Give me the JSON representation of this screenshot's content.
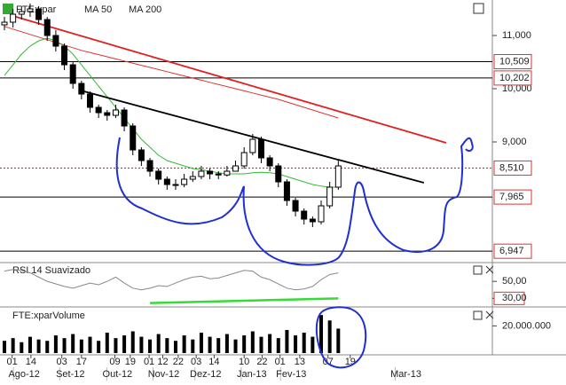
{
  "chart_data": {
    "type": "candlestick",
    "title": "FTE:xpar",
    "open": [
      11200,
      11250,
      11400,
      11450,
      11500,
      11300,
      11000,
      10800,
      10450,
      10100,
      9900,
      9650,
      9550,
      9500,
      9600,
      9300,
      8850,
      8650,
      8450,
      8300,
      8200,
      8200,
      8300,
      8350,
      8450,
      8400,
      8380,
      8450,
      8550,
      8800,
      9050,
      8700,
      8550,
      8250,
      7900,
      7700,
      7550,
      7500,
      7800,
      8150
    ],
    "close": [
      11250,
      11400,
      11450,
      11500,
      11300,
      11000,
      10800,
      10450,
      10100,
      9900,
      9650,
      9550,
      9500,
      9600,
      9300,
      8850,
      8650,
      8450,
      8300,
      8200,
      8200,
      8300,
      8350,
      8450,
      8400,
      8380,
      8450,
      8550,
      8800,
      9050,
      8700,
      8550,
      8250,
      7900,
      7700,
      7550,
      7500,
      7800,
      8150,
      8550
    ],
    "high": [
      11350,
      11500,
      11550,
      11600,
      11550,
      11350,
      11100,
      10850,
      10500,
      10150,
      9950,
      9700,
      9600,
      9700,
      9650,
      9350,
      8900,
      8700,
      8500,
      8350,
      8300,
      8400,
      8450,
      8550,
      8500,
      8450,
      8550,
      8650,
      8900,
      9150,
      9100,
      8750,
      8600,
      8300,
      7950,
      7750,
      7600,
      7900,
      8250,
      8650
    ],
    "low": [
      11100,
      11150,
      11300,
      11350,
      11200,
      10900,
      10700,
      10350,
      10000,
      9800,
      9550,
      9450,
      9400,
      9450,
      9200,
      8750,
      8550,
      8350,
      8200,
      8100,
      8100,
      8150,
      8250,
      8300,
      8300,
      8300,
      8350,
      8450,
      8500,
      8750,
      8600,
      8450,
      8150,
      7800,
      7600,
      7450,
      7400,
      7450,
      7750,
      8100
    ],
    "series": [
      {
        "name": "MA 50",
        "color": "#33bb33",
        "values": [
          10250,
          10450,
          10650,
          10800,
          10900,
          10950,
          10900,
          10800,
          10650,
          10450,
          10250,
          10050,
          9850,
          9650,
          9450,
          9250,
          9050,
          8900,
          8750,
          8650,
          8600,
          8550,
          8500,
          8480,
          8450,
          8420,
          8400,
          8400,
          8400,
          8420,
          8430,
          8420,
          8400,
          8350,
          8300,
          8250,
          8200,
          8170,
          8150,
          8150
        ]
      },
      {
        "name": "MA 200",
        "color": "#dd3333",
        "values": [
          11170,
          11120,
          11070,
          11020,
          10970,
          10920,
          10870,
          10820,
          10770,
          10720,
          10680,
          10640,
          10600,
          10560,
          10520,
          10480,
          10440,
          10400,
          10360,
          10320,
          10280,
          10240,
          10200,
          10160,
          10120,
          10080,
          10040,
          10000,
          9960,
          9920,
          9880,
          9840,
          9800,
          9750,
          9700,
          9650,
          9600,
          9550,
          9500,
          9450
        ]
      }
    ],
    "trendlines": [
      {
        "color": "#000000",
        "x": [
          9.3,
          49
        ],
        "values": [
          9950,
          8233
        ]
      },
      {
        "color": "#e02020",
        "x": [
          1,
          51.6
        ],
        "values": [
          11367,
          8983
        ]
      }
    ],
    "ylim": [
      6750,
      11667
    ],
    "xlim": [
      0,
      57
    ],
    "yticks": [
      {
        "value": 11000,
        "label": "11,000"
      },
      {
        "value": 10000,
        "label": "10,000"
      },
      {
        "value": 9000,
        "label": "9,000"
      }
    ],
    "levels": [
      {
        "value": 10509,
        "label": "10,509"
      },
      {
        "value": 10202,
        "label": "10,202"
      },
      {
        "value": 8510,
        "label": "8,510"
      },
      {
        "value": 7965,
        "label": "7,965"
      },
      {
        "value": 6947,
        "label": "6,947"
      }
    ],
    "xticks": [
      {
        "value": 0.9,
        "label": "01"
      },
      {
        "value": 3.1,
        "label": "14"
      },
      {
        "value": 6.7,
        "label": "03"
      },
      {
        "value": 9,
        "label": "17"
      },
      {
        "value": 12.9,
        "label": "09"
      },
      {
        "value": 14.7,
        "label": "19"
      },
      {
        "value": 16.9,
        "label": "01"
      },
      {
        "value": 18.5,
        "label": "12"
      },
      {
        "value": 20.3,
        "label": "22"
      },
      {
        "value": 22.4,
        "label": "03"
      },
      {
        "value": 24.5,
        "label": "14"
      },
      {
        "value": 28,
        "label": "10"
      },
      {
        "value": 30.1,
        "label": "22"
      },
      {
        "value": 32.2,
        "label": "01"
      },
      {
        "value": 34.5,
        "label": "13"
      },
      {
        "value": 37.8,
        "label": "07"
      },
      {
        "value": 40.4,
        "label": "19"
      }
    ],
    "months": [
      {
        "value": 2.3,
        "label": "Ago-12"
      },
      {
        "value": 7.7,
        "label": "Set-12"
      },
      {
        "value": 13.2,
        "label": "Out-12"
      },
      {
        "value": 18.6,
        "label": "Nov-12"
      },
      {
        "value": 23.5,
        "label": "Dez-12"
      },
      {
        "value": 28.9,
        "label": "Jan-13"
      },
      {
        "value": 33.5,
        "label": "Fev-13"
      },
      {
        "value": 46.9,
        "label": "Mar-13"
      }
    ],
    "rsi": {
      "title": "RSI 14 Suavizado",
      "values": [
        62,
        64,
        63,
        60,
        55,
        50,
        47,
        44,
        42,
        45,
        48,
        46,
        50,
        55,
        48,
        42,
        40,
        42,
        45,
        44,
        48,
        52,
        55,
        56,
        53,
        54,
        57,
        60,
        63,
        62,
        55,
        52,
        47,
        42,
        40,
        41,
        44,
        52,
        58,
        60
      ],
      "ylim": [
        22,
        70
      ],
      "yticks": [
        {
          "value": 50,
          "label": "50,00"
        },
        {
          "value": 30,
          "label": "30,00"
        }
      ],
      "support": {
        "x": [
          17,
          39
        ],
        "values": [
          24.5,
          30
        ]
      }
    },
    "volume": {
      "title": "FTE:xparVolume",
      "values": [
        9000000,
        11000000,
        8000000,
        12000000,
        10000000,
        9000000,
        13000000,
        11000000,
        14000000,
        10000000,
        12000000,
        9000000,
        15000000,
        11000000,
        13000000,
        16000000,
        12000000,
        10000000,
        14000000,
        11000000,
        9000000,
        13000000,
        10000000,
        15000000,
        12000000,
        11000000,
        14000000,
        10000000,
        13000000,
        16000000,
        12000000,
        14000000,
        11000000,
        17000000,
        13000000,
        15000000,
        12000000,
        28000000,
        24000000,
        18000000
      ],
      "ylim": [
        0,
        32000000
      ],
      "yticks": [
        {
          "value": 20000000,
          "label": "20.000.000"
        }
      ]
    }
  }
}
